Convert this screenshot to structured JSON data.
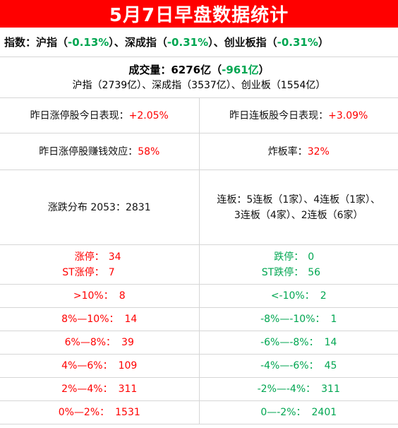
{
  "title": "5月7日早盘数据统计",
  "index": {
    "label": "指数：",
    "sh_name": "沪指（",
    "sh_val": "-0.13%",
    "sh_close": "）、",
    "sz_name": "深成指（",
    "sz_val": "-0.31%",
    "sz_close": "）、",
    "cy_name": "创业板指（",
    "cy_val": "-0.31%",
    "cy_close": "）"
  },
  "volume": {
    "label": "成交量：6276亿（",
    "change": "-961亿",
    "close": "）",
    "detail": "沪指（2739亿）、深成指（3537亿）、创业板（1554亿）"
  },
  "perf": {
    "left_label": "昨日涨停股今日表现：",
    "left_value": "+2.05%",
    "right_label": "昨日连板股今日表现：",
    "right_value": "+3.09%"
  },
  "effect": {
    "left_label": "昨日涨停股赚钱效应：",
    "left_value": "58%",
    "right_label": "炸板率：",
    "right_value": "32%"
  },
  "dist": {
    "left": "涨跌分布 2053：2831",
    "right_line1": "连板：5连板（1家）、4连板（1家）、",
    "right_line2": "3连板（4家）、2连板（6家）"
  },
  "limits": {
    "up_label": "涨停：",
    "up_value": "34",
    "st_up_label": "ST涨停：",
    "st_up_value": "7",
    "down_label": "跌停：",
    "down_value": "0",
    "st_down_label": "ST跌停：",
    "st_down_value": "56"
  },
  "ranges": [
    {
      "left_label": ">10%：",
      "left_value": "8",
      "right_label": "<-10%：",
      "right_value": "2"
    },
    {
      "left_label": "8%—10%：",
      "left_value": "14",
      "right_label": "-8%—-10%：",
      "right_value": "1"
    },
    {
      "left_label": "6%—8%：",
      "left_value": "39",
      "right_label": "-6%—-8%：",
      "right_value": "14"
    },
    {
      "left_label": "4%—6%：",
      "left_value": "109",
      "right_label": "-4%—-6%：",
      "right_value": "45"
    },
    {
      "left_label": "2%—4%：",
      "left_value": "311",
      "right_label": "-2%—-4%：",
      "right_value": "311"
    },
    {
      "left_label": "0%—2%：",
      "left_value": "1531",
      "right_label": "0—-2%：",
      "right_value": "2401"
    }
  ],
  "colors": {
    "up": "#ff0000",
    "down": "#00a651",
    "header_bg": "#ff0000"
  }
}
